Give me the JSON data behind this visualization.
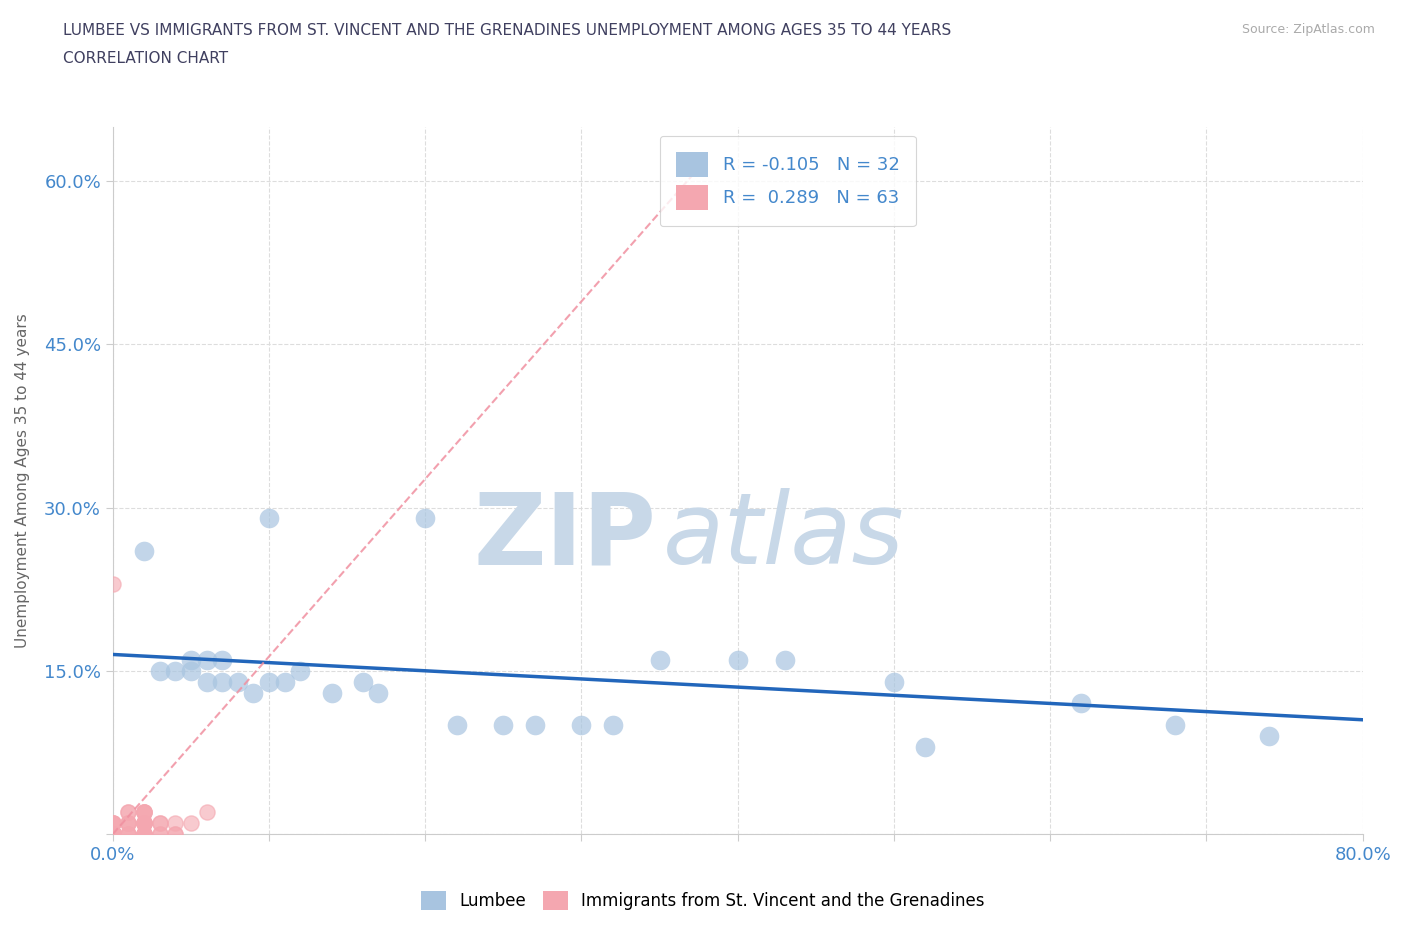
{
  "title_line1": "LUMBEE VS IMMIGRANTS FROM ST. VINCENT AND THE GRENADINES UNEMPLOYMENT AMONG AGES 35 TO 44 YEARS",
  "title_line2": "CORRELATION CHART",
  "source_text": "Source: ZipAtlas.com",
  "ylabel": "Unemployment Among Ages 35 to 44 years",
  "xlim": [
    0,
    0.8
  ],
  "ylim": [
    0,
    0.65
  ],
  "xticks": [
    0.0,
    0.1,
    0.2,
    0.3,
    0.4,
    0.5,
    0.6,
    0.7,
    0.8
  ],
  "yticks": [
    0.0,
    0.15,
    0.3,
    0.45,
    0.6
  ],
  "lumbee_R": -0.105,
  "lumbee_N": 32,
  "svg_R": 0.289,
  "svg_N": 63,
  "lumbee_color": "#a8c4e0",
  "svg_color": "#f4a7b0",
  "lumbee_trend_color": "#2266bb",
  "svg_trend_color": "#f090a0",
  "grid_color": "#dddddd",
  "watermark_color": "#c8d8e8",
  "lumbee_x": [
    0.02,
    0.03,
    0.04,
    0.05,
    0.05,
    0.06,
    0.06,
    0.07,
    0.07,
    0.08,
    0.09,
    0.1,
    0.1,
    0.11,
    0.12,
    0.14,
    0.16,
    0.17,
    0.2,
    0.22,
    0.25,
    0.27,
    0.3,
    0.32,
    0.35,
    0.4,
    0.43,
    0.5,
    0.52,
    0.62,
    0.68,
    0.74
  ],
  "lumbee_y": [
    0.26,
    0.15,
    0.15,
    0.16,
    0.15,
    0.14,
    0.16,
    0.14,
    0.16,
    0.14,
    0.13,
    0.29,
    0.14,
    0.14,
    0.15,
    0.13,
    0.14,
    0.13,
    0.29,
    0.1,
    0.1,
    0.1,
    0.1,
    0.1,
    0.16,
    0.16,
    0.16,
    0.14,
    0.08,
    0.12,
    0.1,
    0.09
  ],
  "svg_x": [
    0.0,
    0.0,
    0.0,
    0.0,
    0.0,
    0.0,
    0.0,
    0.0,
    0.0,
    0.0,
    0.0,
    0.0,
    0.0,
    0.0,
    0.0,
    0.0,
    0.0,
    0.0,
    0.0,
    0.0,
    0.0,
    0.0,
    0.0,
    0.0,
    0.0,
    0.0,
    0.0,
    0.0,
    0.0,
    0.0,
    0.0,
    0.0,
    0.01,
    0.01,
    0.01,
    0.01,
    0.01,
    0.01,
    0.01,
    0.01,
    0.02,
    0.02,
    0.02,
    0.02,
    0.02,
    0.02,
    0.02,
    0.02,
    0.02,
    0.02,
    0.02,
    0.02,
    0.02,
    0.02,
    0.03,
    0.03,
    0.03,
    0.03,
    0.04,
    0.04,
    0.04,
    0.05,
    0.06
  ],
  "svg_y": [
    0.0,
    0.0,
    0.0,
    0.0,
    0.0,
    0.0,
    0.0,
    0.0,
    0.0,
    0.0,
    0.0,
    0.0,
    0.0,
    0.0,
    0.0,
    0.0,
    0.0,
    0.0,
    0.0,
    0.0,
    0.0,
    0.0,
    0.0,
    0.0,
    0.0,
    0.0,
    0.0,
    0.01,
    0.01,
    0.01,
    0.01,
    0.23,
    0.0,
    0.0,
    0.0,
    0.01,
    0.01,
    0.01,
    0.02,
    0.02,
    0.0,
    0.0,
    0.0,
    0.0,
    0.0,
    0.01,
    0.01,
    0.01,
    0.01,
    0.01,
    0.02,
    0.02,
    0.02,
    0.02,
    0.0,
    0.0,
    0.01,
    0.01,
    0.0,
    0.0,
    0.01,
    0.01,
    0.02
  ],
  "lumbee_trend_start_x": 0.0,
  "lumbee_trend_start_y": 0.165,
  "lumbee_trend_end_x": 0.8,
  "lumbee_trend_end_y": 0.105,
  "svg_trend_start_x": 0.0,
  "svg_trend_start_y": 0.0,
  "svg_trend_end_x": 0.38,
  "svg_trend_end_y": 0.62,
  "background_color": "#ffffff",
  "title_color": "#404060",
  "axis_label_color": "#666666",
  "tick_label_color": "#4488cc"
}
